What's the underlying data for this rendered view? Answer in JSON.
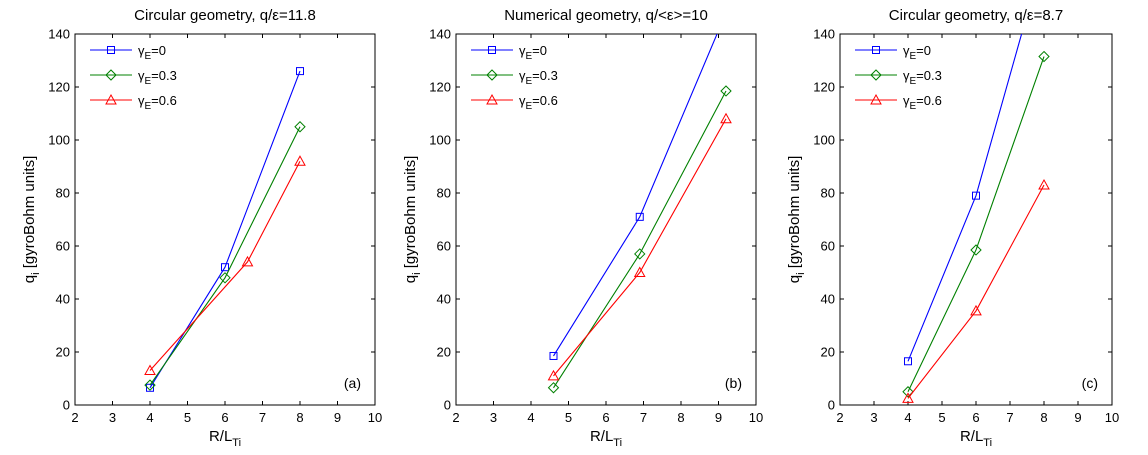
{
  "chart_data": [
    {
      "type": "line",
      "title": "Circular geometry, q/ε=11.8",
      "xlabel": "R/L",
      "xlabel_sub": "Ti",
      "ylabel": "q",
      "ylabel_sub": "i",
      "ylabel_rest": " [gyroBohm units]",
      "panel_label": "(a)",
      "xlim": [
        2,
        10
      ],
      "ylim": [
        0,
        140
      ],
      "xticks": [
        "2",
        "3",
        "4",
        "5",
        "6",
        "7",
        "8",
        "9",
        "10"
      ],
      "yticks": [
        "0",
        "20",
        "40",
        "60",
        "80",
        "100",
        "120",
        "140"
      ],
      "legend_position": "top-left",
      "series": [
        {
          "name": "γ",
          "name_sub": "E",
          "name_rest": "=0",
          "color": "#0000ff",
          "marker": "square",
          "x": [
            4,
            6,
            8
          ],
          "y": [
            6.5,
            52,
            126
          ]
        },
        {
          "name": "γ",
          "name_sub": "E",
          "name_rest": "=0.3",
          "color": "#008000",
          "marker": "diamond",
          "x": [
            4,
            6,
            8
          ],
          "y": [
            7.5,
            48,
            105
          ]
        },
        {
          "name": "γ",
          "name_sub": "E",
          "name_rest": "=0.6",
          "color": "#ff0000",
          "marker": "triangle",
          "x": [
            4,
            6.6,
            8
          ],
          "y": [
            13,
            54,
            92
          ]
        }
      ]
    },
    {
      "type": "line",
      "title": "Numerical geometry, q/<ε>=10",
      "xlabel": "R/L",
      "xlabel_sub": "Ti",
      "ylabel": "q",
      "ylabel_sub": "i",
      "ylabel_rest": " [gyroBohm units]",
      "panel_label": "(b)",
      "xlim": [
        2,
        10
      ],
      "ylim": [
        0,
        140
      ],
      "xticks": [
        "2",
        "3",
        "4",
        "5",
        "6",
        "7",
        "8",
        "9",
        "10"
      ],
      "yticks": [
        "0",
        "20",
        "40",
        "60",
        "80",
        "100",
        "120",
        "140"
      ],
      "legend_position": "top-left",
      "series": [
        {
          "name": "γ",
          "name_sub": "E",
          "name_rest": "=0",
          "color": "#0000ff",
          "marker": "square",
          "x": [
            4.6,
            6.9,
            9.2
          ],
          "y": [
            18.5,
            71,
            148
          ]
        },
        {
          "name": "γ",
          "name_sub": "E",
          "name_rest": "=0.3",
          "color": "#008000",
          "marker": "diamond",
          "x": [
            4.6,
            6.9,
            9.2
          ],
          "y": [
            6.5,
            57,
            118.5
          ]
        },
        {
          "name": "γ",
          "name_sub": "E",
          "name_rest": "=0.6",
          "color": "#ff0000",
          "marker": "triangle",
          "x": [
            4.6,
            6.9,
            9.2
          ],
          "y": [
            11,
            50,
            108
          ]
        }
      ]
    },
    {
      "type": "line",
      "title": "Circular geometry, q/ε=8.7",
      "xlabel": "R/L",
      "xlabel_sub": "Ti",
      "ylabel": "q",
      "ylabel_sub": "i",
      "ylabel_rest": " [gyroBohm units]",
      "panel_label": "(c)",
      "xlim": [
        2,
        10
      ],
      "ylim": [
        0,
        140
      ],
      "xticks": [
        "2",
        "3",
        "4",
        "5",
        "6",
        "7",
        "8",
        "9",
        "10"
      ],
      "yticks": [
        "0",
        "20",
        "40",
        "60",
        "80",
        "100",
        "120",
        "140"
      ],
      "legend_position": "top-left",
      "series": [
        {
          "name": "γ",
          "name_sub": "E",
          "name_rest": "=0",
          "color": "#0000ff",
          "marker": "square",
          "x": [
            4,
            6,
            8
          ],
          "y": [
            16.5,
            79,
            170
          ]
        },
        {
          "name": "γ",
          "name_sub": "E",
          "name_rest": "=0.3",
          "color": "#008000",
          "marker": "diamond",
          "x": [
            4,
            6,
            8
          ],
          "y": [
            5,
            58.5,
            131.5
          ]
        },
        {
          "name": "γ",
          "name_sub": "E",
          "name_rest": "=0.6",
          "color": "#ff0000",
          "marker": "triangle",
          "x": [
            4,
            6,
            8
          ],
          "y": [
            2.5,
            35.5,
            83
          ]
        }
      ]
    }
  ]
}
